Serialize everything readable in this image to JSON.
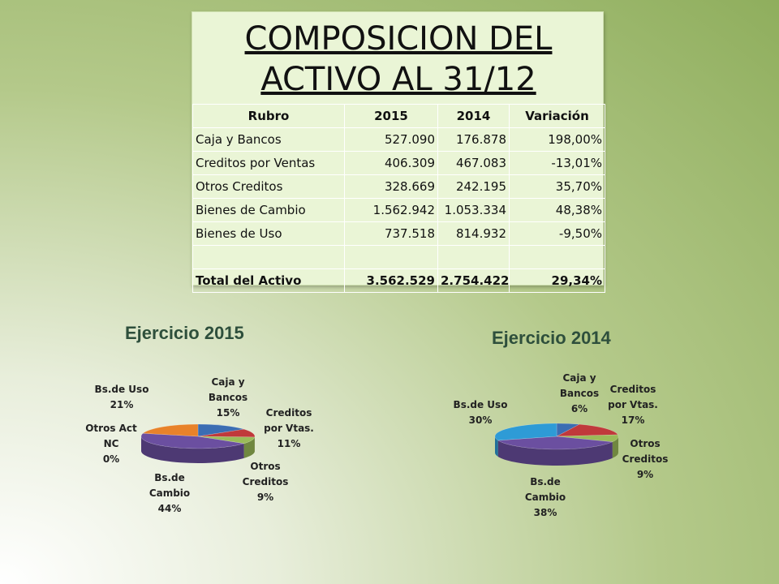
{
  "table": {
    "title": "COMPOSICION DEL ACTIVO AL 31/12",
    "headers": [
      "Rubro",
      "2015",
      "2014",
      "Variación"
    ],
    "rows": [
      [
        "Caja y Bancos",
        "527.090",
        "176.878",
        "198,00%"
      ],
      [
        "Creditos por Ventas",
        "406.309",
        "467.083",
        "-13,01%"
      ],
      [
        "Otros Creditos",
        "328.669",
        "242.195",
        "35,70%"
      ],
      [
        "Bienes de Cambio",
        "1.562.942",
        "1.053.334",
        "48,38%"
      ],
      [
        "Bienes de Uso",
        "737.518",
        "814.932",
        "-9,50%"
      ],
      [
        "",
        "",
        "",
        ""
      ],
      [
        "Total del Activo",
        "3.562.529",
        "2.754.422",
        "29,34%"
      ]
    ],
    "background": "#eaf5d6"
  },
  "chart_data": [
    {
      "type": "pie",
      "title": "Ejercicio 2015",
      "categories": [
        "Caja y Bancos",
        "Creditos por Vtas.",
        "Otros Creditos",
        "Bs.de Cambio",
        "Otros Act NC",
        "Bs.de Uso"
      ],
      "values": [
        15,
        11,
        9,
        44,
        0,
        21
      ],
      "labels": [
        "Caja y Bancos 15%",
        "Creditos por Vtas. 11%",
        "Otros Creditos 9%",
        "Bs.de Cambio 44%",
        "Otros Act NC 0%",
        "Bs.de Uso 21%"
      ],
      "colors": [
        "#3b6db3",
        "#c0393b",
        "#9bbb59",
        "#6b4fa0",
        "#4bacc6",
        "#e8822a"
      ]
    },
    {
      "type": "pie",
      "title": "Ejercicio 2014",
      "categories": [
        "Caja y Bancos",
        "Creditos por Vtas.",
        "Otros Creditos",
        "Bs.de Cambio",
        "Bs.de Uso"
      ],
      "values": [
        6,
        17,
        9,
        38,
        30
      ],
      "labels": [
        "Caja y Bancos 6%",
        "Creditos por Vtas. 17%",
        "Otros Creditos 9%",
        "Bs.de Cambio 38%",
        "Bs.de Uso 30%"
      ],
      "colors": [
        "#3b6db3",
        "#c0393b",
        "#9bbb59",
        "#6b4fa0",
        "#2e9bd6"
      ]
    }
  ]
}
